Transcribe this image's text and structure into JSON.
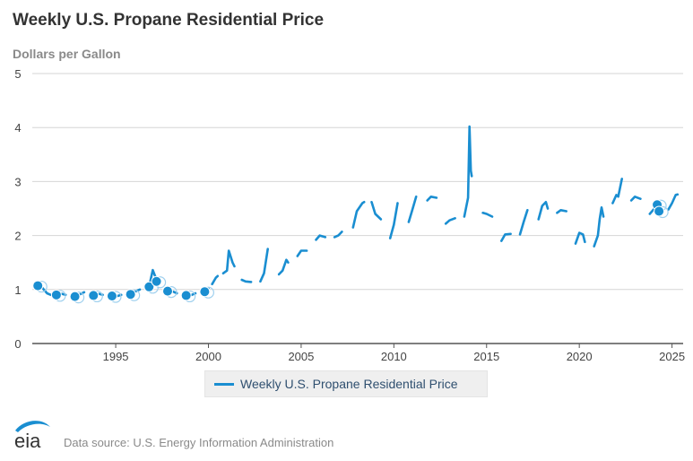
{
  "header": {
    "title": "Weekly U.S. Propane Residential Price",
    "units": "Dollars per Gallon"
  },
  "legend": {
    "label": "Weekly U.S. Propane Residential Price",
    "color": "#1a8ed1"
  },
  "footer": {
    "logo_text": "eia",
    "source": "Data source: U.S. Energy Information Administration"
  },
  "chart_data": {
    "type": "line",
    "title": "Weekly U.S. Propane Residential Price",
    "xlabel": "",
    "ylabel": "Dollars per Gallon",
    "xlim": [
      1990.5,
      2025.6
    ],
    "ylim": [
      0,
      5
    ],
    "y_ticks": [
      0,
      1,
      2,
      3,
      4,
      5
    ],
    "x_ticks": [
      1995,
      2000,
      2005,
      2010,
      2015,
      2020,
      2025
    ],
    "grid": "horizontal",
    "legend_position": "bottom-center",
    "series_color": "#1a8ed1",
    "markers": [
      {
        "x": 1990.8,
        "y": 1.07
      },
      {
        "x": 1991.8,
        "y": 0.9
      },
      {
        "x": 1992.8,
        "y": 0.87
      },
      {
        "x": 1993.8,
        "y": 0.89
      },
      {
        "x": 1994.8,
        "y": 0.88
      },
      {
        "x": 1995.8,
        "y": 0.91
      },
      {
        "x": 1996.8,
        "y": 1.05
      },
      {
        "x": 1997.2,
        "y": 1.15
      },
      {
        "x": 1997.8,
        "y": 0.97
      },
      {
        "x": 1998.8,
        "y": 0.89
      },
      {
        "x": 1999.8,
        "y": 0.96
      },
      {
        "x": 2024.2,
        "y": 2.57
      },
      {
        "x": 2024.3,
        "y": 2.45
      }
    ],
    "series": [
      {
        "name": "Weekly U.S. Propane Residential Price",
        "segments": [
          [
            [
              1990.8,
              1.1
            ],
            [
              1991.0,
              1.05
            ],
            [
              1991.3,
              0.93
            ],
            [
              1991.5,
              0.9
            ]
          ],
          [
            [
              1991.8,
              0.9
            ],
            [
              1992.1,
              0.92
            ],
            [
              1992.3,
              0.9
            ]
          ],
          [
            [
              1992.8,
              0.87
            ],
            [
              1993.0,
              0.9
            ],
            [
              1993.3,
              0.95
            ]
          ],
          [
            [
              1993.8,
              0.89
            ],
            [
              1994.1,
              0.92
            ],
            [
              1994.3,
              0.9
            ]
          ],
          [
            [
              1994.8,
              0.86
            ],
            [
              1995.1,
              0.88
            ],
            [
              1995.3,
              0.9
            ]
          ],
          [
            [
              1995.8,
              0.91
            ],
            [
              1996.1,
              0.97
            ],
            [
              1996.3,
              1.0
            ]
          ],
          [
            [
              1996.8,
              1.05
            ],
            [
              1997.0,
              1.36
            ],
            [
              1997.1,
              1.27
            ],
            [
              1997.3,
              1.12
            ]
          ],
          [
            [
              1997.8,
              0.97
            ],
            [
              1998.1,
              0.96
            ],
            [
              1998.3,
              0.93
            ]
          ],
          [
            [
              1998.8,
              0.89
            ],
            [
              1999.1,
              0.9
            ],
            [
              1999.3,
              0.93
            ]
          ],
          [
            [
              1999.8,
              0.96
            ],
            [
              2000.0,
              1.02
            ]
          ],
          [
            [
              2000.2,
              1.1
            ],
            [
              2000.4,
              1.22
            ],
            [
              2000.5,
              1.25
            ]
          ],
          [
            [
              2000.8,
              1.3
            ],
            [
              2001.0,
              1.35
            ],
            [
              2001.1,
              1.72
            ],
            [
              2001.3,
              1.5
            ],
            [
              2001.4,
              1.43
            ]
          ],
          [
            [
              2001.8,
              1.18
            ],
            [
              2002.0,
              1.15
            ],
            [
              2002.3,
              1.14
            ]
          ],
          [
            [
              2002.8,
              1.15
            ],
            [
              2003.0,
              1.3
            ],
            [
              2003.2,
              1.75
            ]
          ],
          [
            [
              2003.8,
              1.28
            ],
            [
              2004.0,
              1.35
            ],
            [
              2004.2,
              1.55
            ],
            [
              2004.3,
              1.5
            ]
          ],
          [
            [
              2004.8,
              1.62
            ],
            [
              2005.0,
              1.72
            ],
            [
              2005.3,
              1.72
            ]
          ],
          [
            [
              2005.8,
              1.92
            ],
            [
              2006.0,
              2.0
            ],
            [
              2006.3,
              1.97
            ]
          ],
          [
            [
              2006.8,
              1.97
            ],
            [
              2007.0,
              2.0
            ],
            [
              2007.2,
              2.07
            ]
          ],
          [
            [
              2007.8,
              2.15
            ],
            [
              2008.0,
              2.45
            ],
            [
              2008.3,
              2.6
            ],
            [
              2008.4,
              2.62
            ]
          ],
          [
            [
              2008.8,
              2.62
            ],
            [
              2009.0,
              2.4
            ],
            [
              2009.3,
              2.3
            ]
          ],
          [
            [
              2009.8,
              1.95
            ],
            [
              2010.0,
              2.2
            ],
            [
              2010.2,
              2.6
            ]
          ],
          [
            [
              2010.8,
              2.25
            ],
            [
              2011.0,
              2.48
            ],
            [
              2011.2,
              2.72
            ]
          ],
          [
            [
              2011.8,
              2.65
            ],
            [
              2012.0,
              2.72
            ],
            [
              2012.3,
              2.7
            ]
          ],
          [
            [
              2012.8,
              2.22
            ],
            [
              2013.0,
              2.28
            ],
            [
              2013.3,
              2.32
            ]
          ],
          [
            [
              2013.8,
              2.35
            ],
            [
              2014.0,
              2.7
            ],
            [
              2014.08,
              4.02
            ],
            [
              2014.15,
              3.2
            ],
            [
              2014.2,
              3.1
            ]
          ],
          [
            [
              2014.8,
              2.42
            ],
            [
              2015.0,
              2.4
            ],
            [
              2015.3,
              2.35
            ]
          ],
          [
            [
              2015.8,
              1.9
            ],
            [
              2016.0,
              2.02
            ],
            [
              2016.3,
              2.03
            ]
          ],
          [
            [
              2016.8,
              2.02
            ],
            [
              2017.0,
              2.25
            ],
            [
              2017.2,
              2.47
            ]
          ],
          [
            [
              2017.8,
              2.3
            ],
            [
              2018.0,
              2.55
            ],
            [
              2018.2,
              2.62
            ],
            [
              2018.3,
              2.5
            ]
          ],
          [
            [
              2018.8,
              2.42
            ],
            [
              2019.0,
              2.47
            ],
            [
              2019.3,
              2.45
            ]
          ],
          [
            [
              2019.8,
              1.85
            ],
            [
              2020.0,
              2.05
            ],
            [
              2020.2,
              2.02
            ],
            [
              2020.3,
              1.88
            ]
          ],
          [
            [
              2020.8,
              1.8
            ],
            [
              2021.0,
              2.0
            ],
            [
              2021.1,
              2.3
            ],
            [
              2021.2,
              2.52
            ],
            [
              2021.3,
              2.35
            ]
          ],
          [
            [
              2021.8,
              2.6
            ],
            [
              2022.0,
              2.75
            ],
            [
              2022.1,
              2.72
            ],
            [
              2022.3,
              3.05
            ]
          ],
          [
            [
              2022.8,
              2.65
            ],
            [
              2023.0,
              2.72
            ],
            [
              2023.3,
              2.68
            ]
          ],
          [
            [
              2023.8,
              2.4
            ],
            [
              2024.0,
              2.48
            ],
            [
              2024.2,
              2.58
            ],
            [
              2024.3,
              2.4
            ],
            [
              2024.4,
              2.38
            ]
          ],
          [
            [
              2024.8,
              2.48
            ],
            [
              2025.0,
              2.6
            ],
            [
              2025.2,
              2.75
            ],
            [
              2025.3,
              2.76
            ]
          ]
        ]
      }
    ]
  }
}
